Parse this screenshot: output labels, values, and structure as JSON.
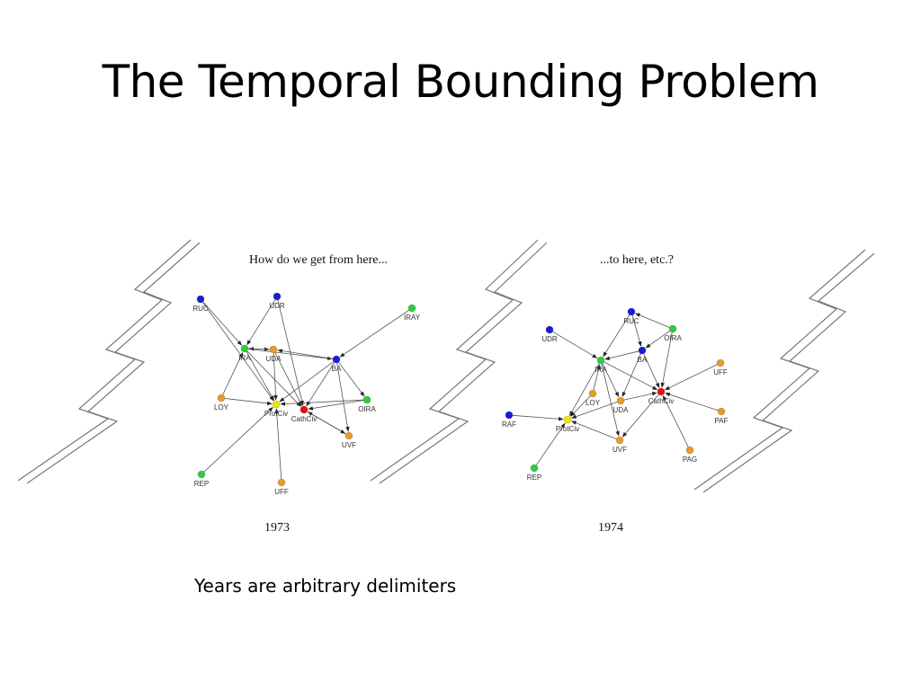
{
  "slide": {
    "title": "The Temporal Bounding Problem",
    "caption": "Years are arbitrary delimiters"
  },
  "colors": {
    "green": "#2ecc40",
    "blue": "#1a1adb",
    "orange": "#e89a2c",
    "red": "#e01010",
    "yellow": "#f2e600",
    "edge": "#555555",
    "break_line": "#777777"
  },
  "networks": [
    {
      "id": "n1973",
      "heading": "How do we get from here...",
      "year": "1973",
      "nodes": [
        {
          "id": "RUC",
          "label": "RUC",
          "color": "blue"
        },
        {
          "id": "UDR",
          "label": "UDR",
          "color": "blue"
        },
        {
          "id": "IRAY",
          "label": "IRAY",
          "color": "green"
        },
        {
          "id": "IRA",
          "label": "IRA",
          "color": "green"
        },
        {
          "id": "UDA",
          "label": "UDA",
          "color": "orange"
        },
        {
          "id": "BA",
          "label": "BA",
          "color": "blue"
        },
        {
          "id": "LOY",
          "label": "LOY",
          "color": "orange"
        },
        {
          "id": "ProtCiv",
          "label": "ProtCiv",
          "color": "yellow"
        },
        {
          "id": "CathCiv",
          "label": "CathCiv",
          "color": "red"
        },
        {
          "id": "OIRA",
          "label": "OIRA",
          "color": "green"
        },
        {
          "id": "UVF",
          "label": "UVF",
          "color": "orange"
        },
        {
          "id": "REP",
          "label": "REP",
          "color": "green"
        },
        {
          "id": "UFF",
          "label": "UFF",
          "color": "orange"
        }
      ],
      "edges": [
        [
          "RUC",
          "IRA"
        ],
        [
          "RUC",
          "ProtCiv"
        ],
        [
          "UDR",
          "IRA"
        ],
        [
          "UDR",
          "CathCiv"
        ],
        [
          "IRAY",
          "BA"
        ],
        [
          "IRA",
          "UDA"
        ],
        [
          "UDA",
          "IRA"
        ],
        [
          "IRA",
          "ProtCiv"
        ],
        [
          "IRA",
          "CathCiv"
        ],
        [
          "IRA",
          "BA"
        ],
        [
          "UDA",
          "CathCiv"
        ],
        [
          "UDA",
          "ProtCiv"
        ],
        [
          "BA",
          "UDA"
        ],
        [
          "BA",
          "ProtCiv"
        ],
        [
          "BA",
          "CathCiv"
        ],
        [
          "BA",
          "OIRA"
        ],
        [
          "BA",
          "UVF"
        ],
        [
          "LOY",
          "IRA"
        ],
        [
          "LOY",
          "ProtCiv"
        ],
        [
          "OIRA",
          "CathCiv"
        ],
        [
          "OIRA",
          "ProtCiv"
        ],
        [
          "UVF",
          "CathCiv"
        ],
        [
          "REP",
          "ProtCiv"
        ],
        [
          "UFF",
          "ProtCiv"
        ],
        [
          "CathCiv",
          "UVF"
        ]
      ]
    },
    {
      "id": "n1974",
      "heading": "...to here, etc.?",
      "year": "1974",
      "nodes": [
        {
          "id": "RUC",
          "label": "RUC",
          "color": "blue"
        },
        {
          "id": "UDR",
          "label": "UDR",
          "color": "blue"
        },
        {
          "id": "OIRA",
          "label": "OIRA",
          "color": "green"
        },
        {
          "id": "BA",
          "label": "BA",
          "color": "blue"
        },
        {
          "id": "IRA",
          "label": "IRA",
          "color": "green"
        },
        {
          "id": "UFF",
          "label": "UFF",
          "color": "orange"
        },
        {
          "id": "LOY",
          "label": "LOY",
          "color": "orange"
        },
        {
          "id": "UDA",
          "label": "UDA",
          "color": "orange"
        },
        {
          "id": "CathCiv",
          "label": "CathCiv",
          "color": "red"
        },
        {
          "id": "PAF",
          "label": "PAF",
          "color": "orange"
        },
        {
          "id": "RAF",
          "label": "RAF",
          "color": "blue"
        },
        {
          "id": "ProtCiv",
          "label": "ProtCiv",
          "color": "yellow"
        },
        {
          "id": "UVF",
          "label": "UVF",
          "color": "orange"
        },
        {
          "id": "PAG",
          "label": "PAG",
          "color": "orange"
        },
        {
          "id": "REP",
          "label": "REP",
          "color": "green"
        }
      ],
      "edges": [
        [
          "RUC",
          "BA"
        ],
        [
          "RUC",
          "IRA"
        ],
        [
          "OIRA",
          "RUC"
        ],
        [
          "UDR",
          "IRA"
        ],
        [
          "OIRA",
          "BA"
        ],
        [
          "OIRA",
          "CathCiv"
        ],
        [
          "BA",
          "IRA"
        ],
        [
          "BA",
          "CathCiv"
        ],
        [
          "BA",
          "UDA"
        ],
        [
          "IRA",
          "UDA"
        ],
        [
          "IRA",
          "CathCiv"
        ],
        [
          "IRA",
          "ProtCiv"
        ],
        [
          "UFF",
          "CathCiv"
        ],
        [
          "LOY",
          "ProtCiv"
        ],
        [
          "UDA",
          "ProtCiv"
        ],
        [
          "UDA",
          "CathCiv"
        ],
        [
          "PAF",
          "CathCiv"
        ],
        [
          "RAF",
          "ProtCiv"
        ],
        [
          "UVF",
          "ProtCiv"
        ],
        [
          "CathCiv",
          "UVF"
        ],
        [
          "PAG",
          "CathCiv"
        ],
        [
          "REP",
          "ProtCiv"
        ],
        [
          "IRA",
          "UVF"
        ],
        [
          "LOY",
          "IRA"
        ]
      ]
    }
  ]
}
